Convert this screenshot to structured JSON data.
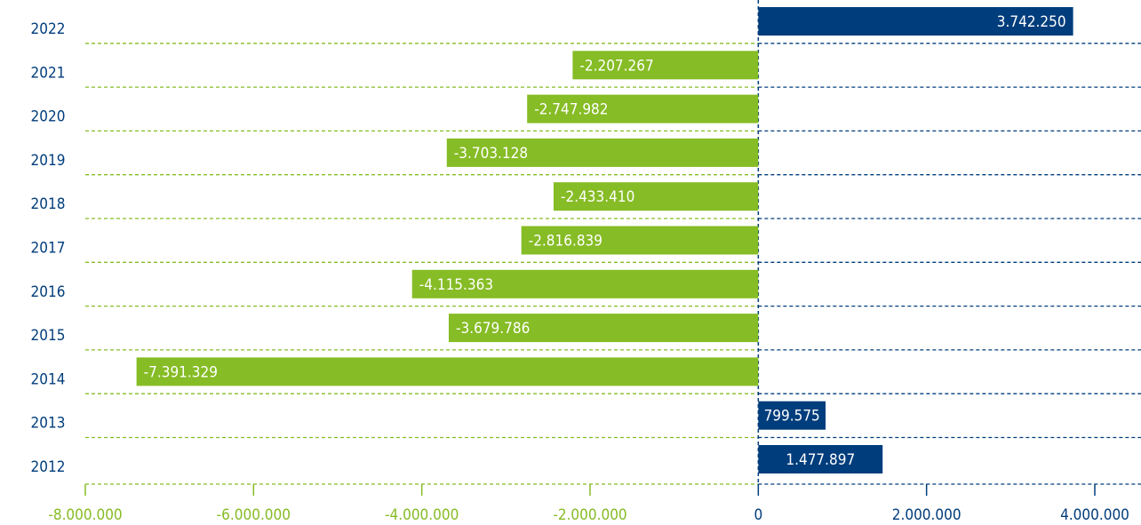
{
  "chart_data": {
    "type": "bar",
    "orientation": "horizontal",
    "categories": [
      "2022",
      "2021",
      "2020",
      "2019",
      "2018",
      "2017",
      "2016",
      "2015",
      "2014",
      "2013",
      "2012"
    ],
    "values": [
      3742250,
      -2207267,
      -2747982,
      -3703128,
      -2433410,
      -2816839,
      -4115363,
      -3679786,
      -7391329,
      799575,
      1477897
    ],
    "value_labels": [
      "3.742.250",
      "-2.207.267",
      "-2.747.982",
      "-3.703.128",
      "-2.433.410",
      "-2.816.839",
      "-4.115.363",
      "-3.679.786",
      "-7.391.329",
      "799.575",
      "1.477.897"
    ],
    "xlim": [
      -8000000,
      4000000
    ],
    "xticks": [
      -8000000,
      -6000000,
      -4000000,
      -2000000,
      0,
      2000000,
      4000000
    ],
    "xtick_labels": [
      "-8.000.000",
      "-6.000.000",
      "-4.000.000",
      "-2.000.000",
      "0",
      "2.000.000",
      "4.000.000"
    ],
    "grid": true,
    "legend": "none",
    "title": "",
    "xlabel": "",
    "ylabel": "",
    "colors": {
      "positive": "#003d7c",
      "negative": "#86bc25",
      "grid_negative": "#86bc25",
      "grid_positive": "#003d7c",
      "category_text": "#003d7c",
      "tick_negative": "#86bc25",
      "tick_positive": "#003d7c"
    }
  }
}
